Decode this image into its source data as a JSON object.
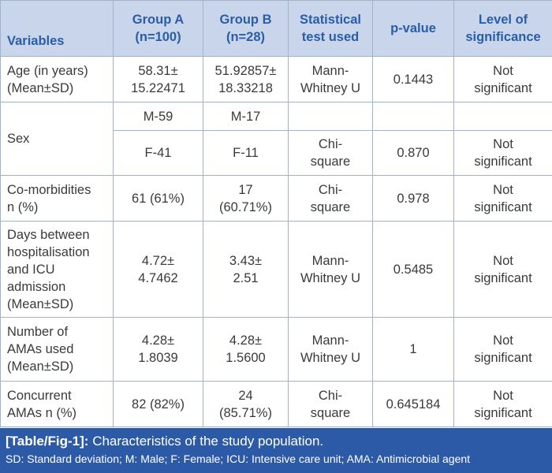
{
  "headers": {
    "variables": "Variables",
    "group_a": "Group A\n(n=100)",
    "group_b": "Group B\n(n=28)",
    "test": "Statistical\ntest used",
    "pvalue": "p-value",
    "significance": "Level of\nsignificance"
  },
  "rows": {
    "age": {
      "label": "Age (in years)\n(Mean±SD)",
      "group_a": "58.31±\n15.22471",
      "group_b": "51.92857±\n18.33218",
      "test": "Mann-\nWhitney U",
      "p": "0.1443",
      "sig": "Not\nsignificant"
    },
    "sex": {
      "label": "Sex",
      "male_a": "M-59",
      "male_b": "M-17",
      "female_a": "F-41",
      "female_b": "F-11",
      "test": "Chi-\nsquare",
      "p": "0.870",
      "sig": "Not\nsignificant"
    },
    "comorbidities": {
      "label": "Co-morbidities\nn (%)",
      "group_a": "61 (61%)",
      "group_b": "17\n(60.71%)",
      "test": "Chi-\nsquare",
      "p": "0.978",
      "sig": "Not\nsignificant"
    },
    "days": {
      "label": "Days between\nhospitalisation\nand ICU\nadmission\n(Mean±SD)",
      "group_a": "4.72±\n4.7462",
      "group_b": "3.43±\n2.51",
      "test": "Mann-\nWhitney U",
      "p": "0.5485",
      "sig": "Not\nsignificant"
    },
    "amas": {
      "label": "Number of\nAMAs used\n(Mean±SD)",
      "group_a": "4.28±\n1.8039",
      "group_b": "4.28±\n1.5600",
      "test": "Mann-\nWhitney U",
      "p": "1",
      "sig": "Not\nsignificant"
    },
    "concurrent": {
      "label": "Concurrent\nAMAs n (%)",
      "group_a": "82 (82%)",
      "group_b": "24\n(85.71%)",
      "test": "Chi-\nsquare",
      "p": "0.645184",
      "sig": "Not\nsignificant"
    }
  },
  "caption": {
    "tag": "[Table/Fig-1]:",
    "title": "Characteristics of the study population.",
    "footnote": "SD: Standard deviation; M: Male; F: Female; ICU: Intensive care unit; AMA: Antimicrobial agent"
  },
  "colors": {
    "header_bg": "#c8d5ea",
    "header_text": "#2a5da6",
    "caption_bg": "#2d5aa6",
    "border": "#9fb3cf"
  }
}
